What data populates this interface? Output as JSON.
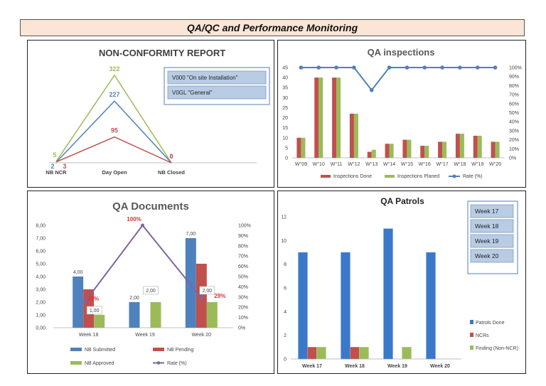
{
  "banner": {
    "title": "QA/QC and Performance Monitoring"
  },
  "chart_data": [
    {
      "id": "ncr",
      "type": "line",
      "title": "NON-CONFORMITY REPORT",
      "categories": [
        "NB NCR",
        "Day Open",
        "NB Closed"
      ],
      "series": [
        {
          "values": [
            5,
            322,
            0
          ],
          "color": "#9bbb59"
        },
        {
          "values": [
            2,
            227,
            0
          ],
          "color": "#4f81bd"
        },
        {
          "values": [
            3,
            95,
            0
          ],
          "color": "#c0504d"
        }
      ],
      "ylim": [
        0,
        340
      ],
      "legend_boxes": [
        "V000 \"On site Installation\"",
        "V0GL \"General\""
      ]
    },
    {
      "id": "inspections",
      "type": "bar",
      "title": "QA inspections",
      "categories": [
        "W°09",
        "W°10",
        "W°11",
        "W°12",
        "W°13",
        "W°14",
        "W°15",
        "W°16",
        "W°17",
        "W°18",
        "W°19",
        "W°20"
      ],
      "series": [
        {
          "name": "Inspections Done",
          "values": [
            10,
            40,
            40,
            22,
            3,
            7,
            9,
            6,
            8,
            12,
            11,
            8
          ],
          "color": "#c0504d"
        },
        {
          "name": "Inspections Planed",
          "values": [
            10,
            40,
            40,
            22,
            4,
            7,
            9,
            6,
            8,
            12,
            11,
            8
          ],
          "color": "#9bbb59"
        },
        {
          "name": "Rate (%)",
          "values": [
            100,
            100,
            100,
            100,
            75,
            100,
            100,
            100,
            100,
            100,
            100,
            100
          ],
          "color": "#4f81bd",
          "axis": "right"
        }
      ],
      "ylim": [
        0,
        45
      ],
      "y_ticks": [
        "0",
        "5",
        "10",
        "15",
        "20",
        "25",
        "30",
        "35",
        "40",
        "45"
      ],
      "y2lim": [
        0,
        100
      ],
      "y2_ticks": [
        "0%",
        "10%",
        "20%",
        "30%",
        "40%",
        "50%",
        "60%",
        "70%",
        "80%",
        "90%",
        "100%"
      ],
      "legend_position": "bottom"
    },
    {
      "id": "documents",
      "type": "bar",
      "title": "QA Documents",
      "categories": [
        "Week 18",
        "Week 19",
        "Week 20"
      ],
      "series": [
        {
          "name": "NB Submitted",
          "values": [
            4,
            2,
            7
          ],
          "labels": [
            "4,00",
            "2,00",
            "7,00"
          ],
          "color": "#4f81bd"
        },
        {
          "name": "NB Pending",
          "values": [
            3,
            0,
            5
          ],
          "color": "#c0504d"
        },
        {
          "name": "NB Approved",
          "values": [
            1,
            2,
            2
          ],
          "labels": [
            "1,00",
            "2,00",
            "2,00"
          ],
          "color": "#9bbb59"
        },
        {
          "name": "Rate (%)",
          "values": [
            25,
            100,
            29
          ],
          "labels": [
            "25%",
            "100%",
            "29%"
          ],
          "color": "#8064a2",
          "axis": "right"
        }
      ],
      "ylim": [
        0,
        8
      ],
      "y_ticks": [
        "0,00",
        "1,00",
        "2,00",
        "3,00",
        "4,00",
        "5,00",
        "6,00",
        "7,00",
        "8,00"
      ],
      "y2lim": [
        0,
        100
      ],
      "y2_ticks": [
        "0%",
        "10%",
        "20%",
        "30%",
        "40%",
        "50%",
        "60%",
        "70%",
        "80%",
        "90%",
        "100%"
      ],
      "legend_position": "bottom"
    },
    {
      "id": "patrols",
      "type": "bar",
      "title": "QA Patrols",
      "categories": [
        "Week 17",
        "Week 18",
        "Week 19",
        "Week 20"
      ],
      "series": [
        {
          "name": "Patrols Done",
          "values": [
            9,
            9,
            11,
            9
          ],
          "color": "#3a78c9"
        },
        {
          "name": "NCRs",
          "values": [
            1,
            1,
            0,
            0
          ],
          "color": "#c0504d"
        },
        {
          "name": "Finding (Non-NCR)",
          "values": [
            1,
            1,
            1,
            0
          ],
          "color": "#9bbb59"
        }
      ],
      "ylim": [
        0,
        12
      ],
      "y_ticks": [
        "0",
        "2",
        "4",
        "6",
        "8",
        "10",
        "12"
      ],
      "legend_position": "right",
      "slicer_items": [
        "Week 17",
        "Week 18",
        "Week 19",
        "Week 20"
      ]
    }
  ]
}
